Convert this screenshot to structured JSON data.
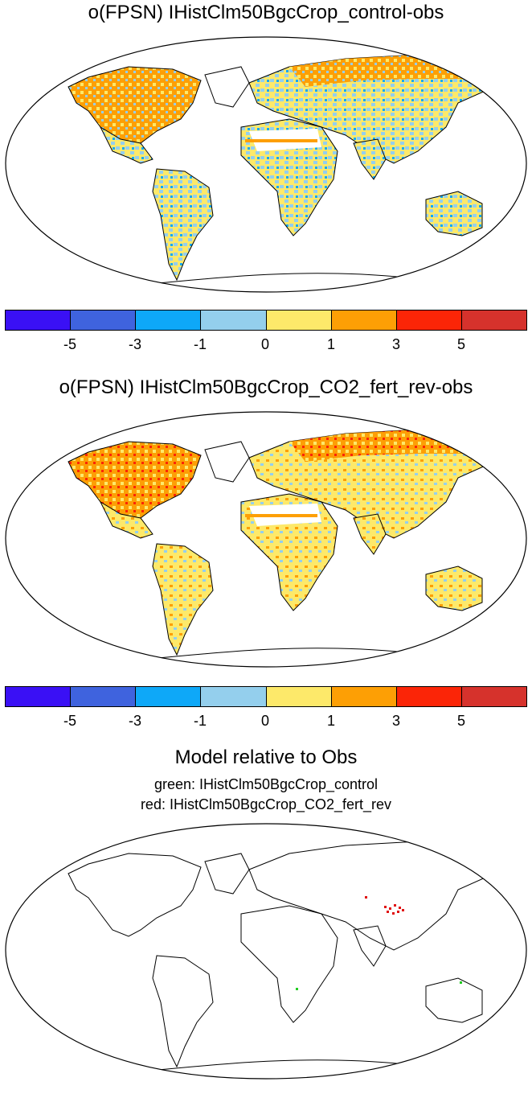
{
  "panels": [
    {
      "title": "o(FPSN) IHistClm50BgcCrop_control-obs"
    },
    {
      "title": "o(FPSN) IHistClm50BgcCrop_CO2_fert_rev-obs"
    }
  ],
  "colorbar": {
    "colors": [
      "#3a10f5",
      "#3f63de",
      "#0ea8f8",
      "#94cfed",
      "#fde96a",
      "#fd9f05",
      "#fb2507",
      "#d6322c"
    ],
    "labels": [
      "-5",
      "-3",
      "-1",
      "0",
      "1",
      "3",
      "5"
    ]
  },
  "relative_panel": {
    "title": "Model relative to Obs",
    "line1": "green: IHistClm50BgcCrop_control",
    "line2": "red: IHistClm50BgcCrop_CO2_fert_rev"
  }
}
